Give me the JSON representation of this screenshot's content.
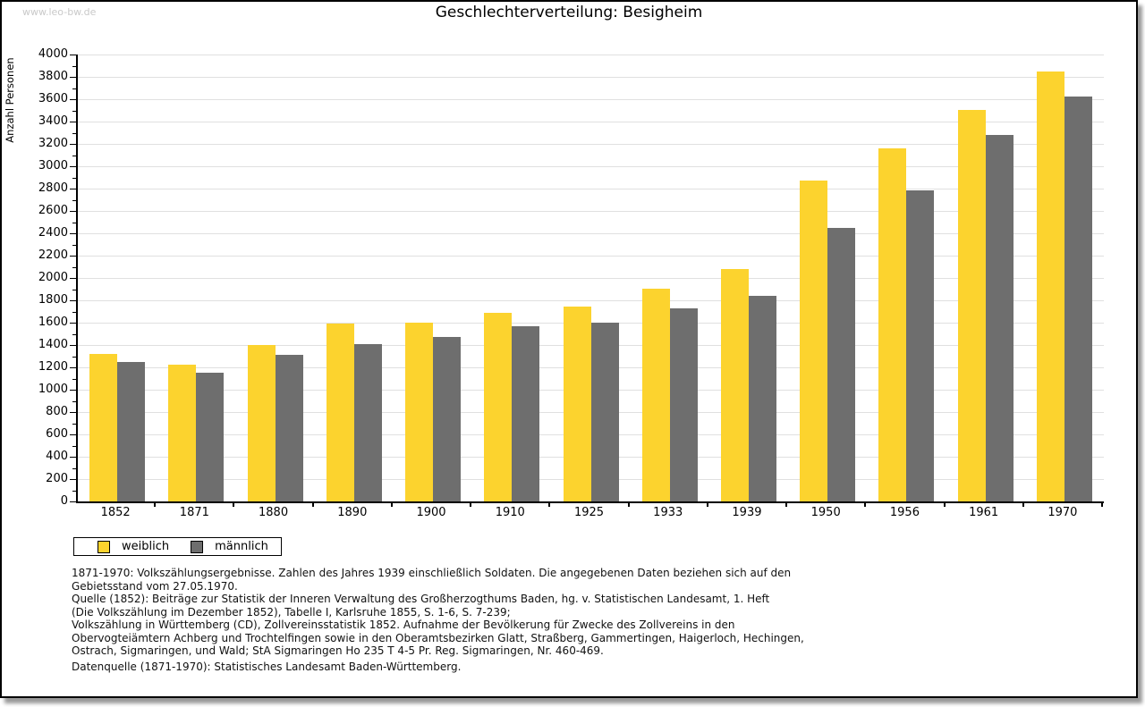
{
  "watermark": "www.leo-bw.de",
  "title": "Geschlechterverteilung: Besigheim",
  "chart_data": {
    "type": "bar",
    "title": "Geschlechterverteilung: Besigheim",
    "ylabel": "Anzahl Personen",
    "xlabel": "",
    "ylim": [
      0,
      4000
    ],
    "ytick_step": 200,
    "yminor_step": 100,
    "grid": true,
    "legend_position": "bottom-left",
    "categories": [
      "1852",
      "1871",
      "1880",
      "1890",
      "1900",
      "1910",
      "1925",
      "1933",
      "1939",
      "1950",
      "1956",
      "1961",
      "1970"
    ],
    "series": [
      {
        "name": "weiblich",
        "color": "#fcd32e",
        "values": [
          1320,
          1220,
          1400,
          1590,
          1600,
          1690,
          1740,
          1900,
          2080,
          2870,
          3160,
          3500,
          3850
        ]
      },
      {
        "name": "männlich",
        "color": "#6e6e6e",
        "values": [
          1250,
          1150,
          1310,
          1410,
          1470,
          1570,
          1600,
          1730,
          1840,
          2450,
          2780,
          3280,
          3620
        ]
      }
    ]
  },
  "colors": {
    "female": "#fcd32e",
    "male": "#6e6e6e",
    "gridline": "#e0e0e0",
    "axis": "#000000",
    "watermark": "#c9c9c9"
  },
  "footnotes": {
    "lines": [
      "1871-1970: Volkszählungsergebnisse. Zahlen des Jahres 1939 einschließlich Soldaten. Die angegebenen Daten beziehen sich auf den",
      "Gebietsstand vom 27.05.1970.",
      "Quelle (1852): Beiträge zur Statistik der Inneren Verwaltung des Großherzogthums Baden, hg. v. Statistischen Landesamt, 1. Heft",
      "(Die Volkszählung im Dezember 1852), Tabelle I, Karlsruhe 1855, S. 1-6, S. 7-239;",
      "Volkszählung in Württemberg (CD), Zollvereinsstatistik 1852. Aufnahme der Bevölkerung für Zwecke des Zollvereins in den",
      "Obervogteiämtern Achberg und Trochtelfingen sowie in den Oberamtsbezirken Glatt, Straßberg, Gammertingen, Haigerloch, Hechingen,",
      "Ostrach, Sigmaringen, und Wald; StA Sigmaringen Ho 235 T 4-5 Pr. Reg. Sigmaringen, Nr. 460-469."
    ],
    "datasource": "Datenquelle (1871-1970): Statistisches Landesamt Baden-Württemberg."
  }
}
